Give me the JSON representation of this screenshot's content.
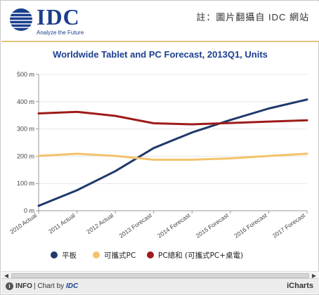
{
  "header": {
    "logo_word": "IDC",
    "logo_tagline": "Analyze the Future",
    "note": "註：圖片翻攝自 IDC 網站"
  },
  "footer": {
    "info_label": "INFO",
    "chart_by_prefix": "| Chart by",
    "chart_by_brand": "IDC",
    "brand_right": "iCharts"
  },
  "colors": {
    "tablet": "#1f3a6b",
    "portable_pc": "#f4c26a",
    "pc_total": "#9e1b1b",
    "axis_text": "#444444",
    "grid": "#e6e6e6",
    "title": "#1b3f8e"
  },
  "chart_data": {
    "type": "line",
    "title": "Worldwide Tablet and PC Forecast, 2013Q1, Units",
    "categories": [
      "2010 Actual",
      "2011 Actual",
      "2012 Actual",
      "2013 Forecast",
      "2014 Forecast",
      "2015 Forecast",
      "2016 Forecast",
      "2017 Forecast"
    ],
    "yticks": [
      "0 m",
      "100 m",
      "200 m",
      "300 m",
      "400 m",
      "500 m"
    ],
    "ylim": [
      0,
      500
    ],
    "grid": "horizontal",
    "legend_position": "bottom",
    "series": [
      {
        "name": "平板",
        "color_key": "tablet",
        "values": [
          18,
          75,
          145,
          230,
          287,
          333,
          375,
          408
        ]
      },
      {
        "name": "可攜式PC",
        "color_key": "portable_pc",
        "values": [
          201,
          209,
          201,
          187,
          187,
          192,
          201,
          209
        ]
      },
      {
        "name": "PC總和 (可攜式PC+桌電)",
        "color_key": "pc_total",
        "values": [
          357,
          363,
          348,
          321,
          317,
          322,
          327,
          332
        ]
      }
    ]
  }
}
